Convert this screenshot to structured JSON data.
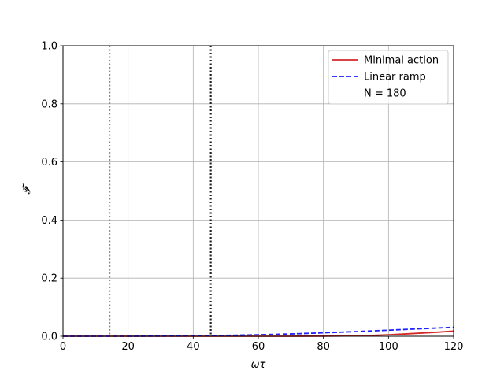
{
  "chart_data": {
    "type": "line",
    "title": "",
    "xlabel": "ωτ",
    "ylabel": "𝓕",
    "xlim": [
      0,
      120
    ],
    "ylim": [
      0,
      1.0
    ],
    "x_ticks": [
      0,
      20,
      40,
      60,
      80,
      100,
      120
    ],
    "y_ticks": [
      0.0,
      0.2,
      0.4,
      0.6,
      0.8,
      1.0
    ],
    "x_tick_labels": [
      "0",
      "20",
      "40",
      "60",
      "80",
      "100",
      "120"
    ],
    "y_tick_labels": [
      "0.0",
      "0.2",
      "0.4",
      "0.6",
      "0.8",
      "1.0"
    ],
    "grid": true,
    "legend_placement": "top-right",
    "series": [
      {
        "name": "Minimal action",
        "color": "#d62728",
        "style": "solid",
        "x": [
          0,
          20,
          40,
          60,
          70,
          80,
          90,
          95,
          100,
          105,
          110,
          115,
          120
        ],
        "y": [
          0,
          0,
          0,
          0,
          0,
          0.0005,
          0.0015,
          0.003,
          0.005,
          0.008,
          0.011,
          0.014,
          0.018
        ]
      },
      {
        "name": "Linear ramp",
        "color": "#1f1fff",
        "style": "dashed",
        "x": [
          0,
          20,
          40,
          50,
          60,
          70,
          80,
          90,
          100,
          110,
          120
        ],
        "y": [
          0,
          0,
          0.001,
          0.003,
          0.005,
          0.008,
          0.012,
          0.016,
          0.021,
          0.026,
          0.031
        ]
      }
    ],
    "legend_extra": "N = 180",
    "vlines": [
      {
        "x": 14.3,
        "color": "#8c8c8c",
        "style": "dotted"
      },
      {
        "x": 45.4,
        "color": "#222222",
        "style": "dotted"
      }
    ]
  }
}
